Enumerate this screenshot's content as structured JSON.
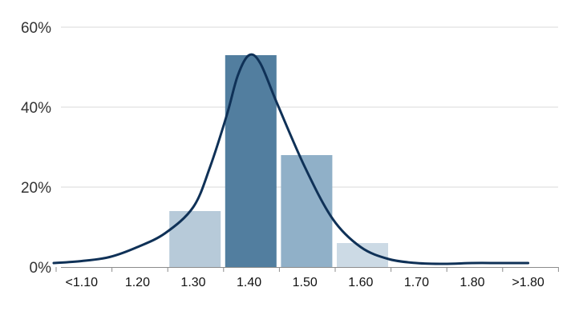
{
  "chart_data": {
    "type": "bar",
    "title": "",
    "xlabel": "",
    "ylabel": "",
    "categories": [
      "<1.10",
      "1.20",
      "1.30",
      "1.40",
      "1.50",
      "1.60",
      "1.70",
      "1.80",
      ">1.80"
    ],
    "values": [
      0,
      0,
      14,
      53,
      28,
      6,
      0,
      0,
      0
    ],
    "bar_colors": [
      "#b7cad9",
      "#b7cad9",
      "#b7cad9",
      "#527e9f",
      "#90b0c8",
      "#ccdae5",
      "#b7cad9",
      "#b7cad9",
      "#b7cad9"
    ],
    "ylim": [
      0,
      60
    ],
    "yticks": [
      0,
      20,
      40,
      60
    ],
    "ytick_labels": [
      "0%",
      "20%",
      "40%",
      "60%"
    ],
    "grid": true,
    "legend": "none",
    "curve": {
      "type": "line",
      "color": "#0f3157",
      "x": [
        1.05,
        1.1,
        1.15,
        1.2,
        1.25,
        1.3,
        1.33,
        1.36,
        1.38,
        1.4,
        1.42,
        1.45,
        1.5,
        1.55,
        1.6,
        1.65,
        1.7,
        1.75,
        1.8,
        1.85,
        1.9
      ],
      "y": [
        1,
        1.5,
        2.5,
        5,
        8.5,
        15,
        25,
        38,
        48,
        53,
        51,
        41,
        25,
        12,
        5,
        2,
        1,
        0.8,
        1,
        1,
        1
      ]
    }
  }
}
